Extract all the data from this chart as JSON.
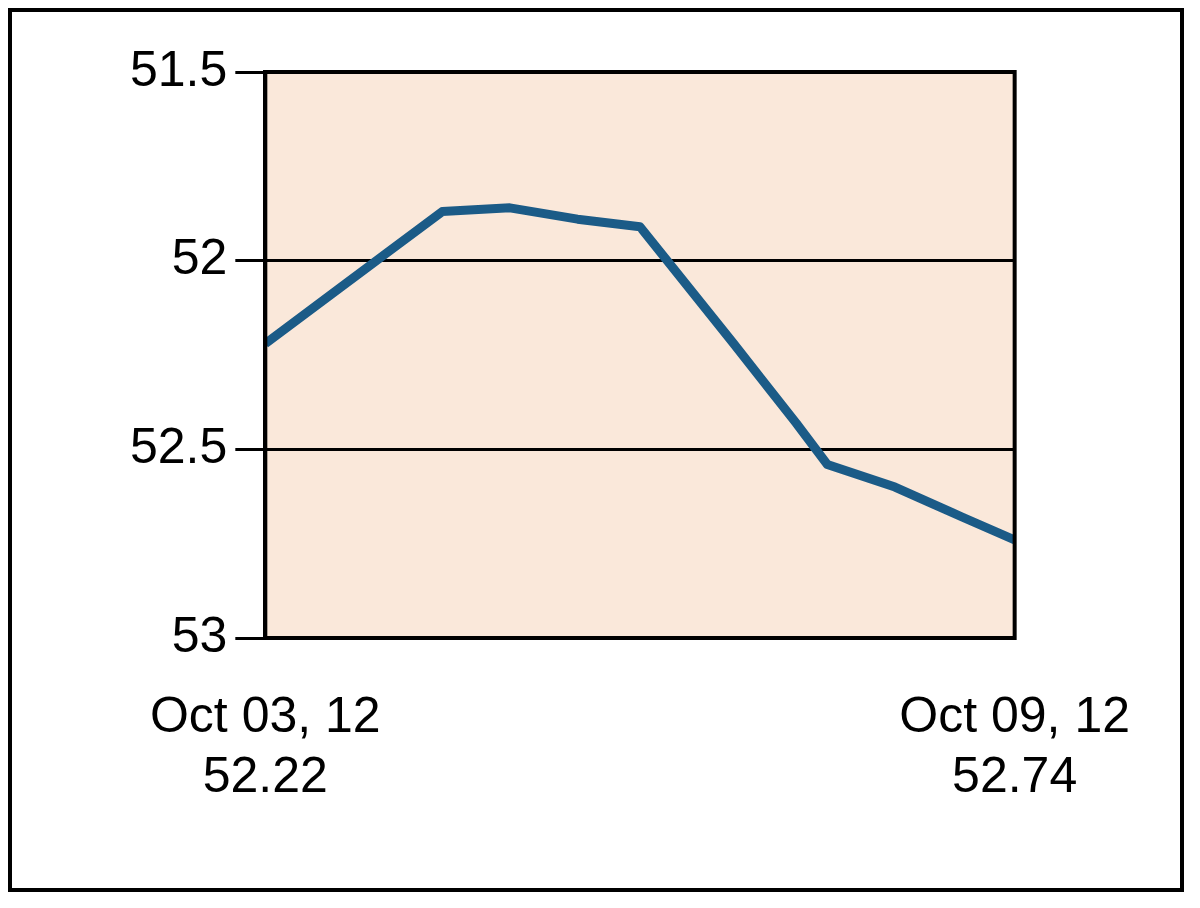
{
  "chart_data": {
    "type": "line",
    "series": [
      {
        "color": "#1b5b87",
        "x": [
          "--10-03",
          "--10-03T15:30",
          "--10-04T10:00",
          "--10-04T23:00",
          "--10-05T12:00",
          "--10-06T00:00",
          "--10-06T18:00",
          "--10-07T06:00",
          "--10-07T12:00",
          "--10-08T01:00",
          "--10-08T14:00",
          "--10-09"
        ],
        "values": [
          52.22,
          52.06,
          51.87,
          51.86,
          51.89,
          51.91,
          52.22,
          52.43,
          52.54,
          52.6,
          52.68,
          52.74
        ]
      }
    ],
    "xlim": [
      "--10-03",
      "--10-09"
    ],
    "xticks": [
      {
        "value": "--10-03",
        "label": "Oct 03, 12\n52.22"
      },
      {
        "value": "--10-09",
        "label": "Oct 09, 12\n52.74"
      }
    ],
    "ylim": [
      53,
      51.5
    ],
    "yticks": [
      51.5,
      52,
      52.5,
      53
    ],
    "grid": "y"
  }
}
